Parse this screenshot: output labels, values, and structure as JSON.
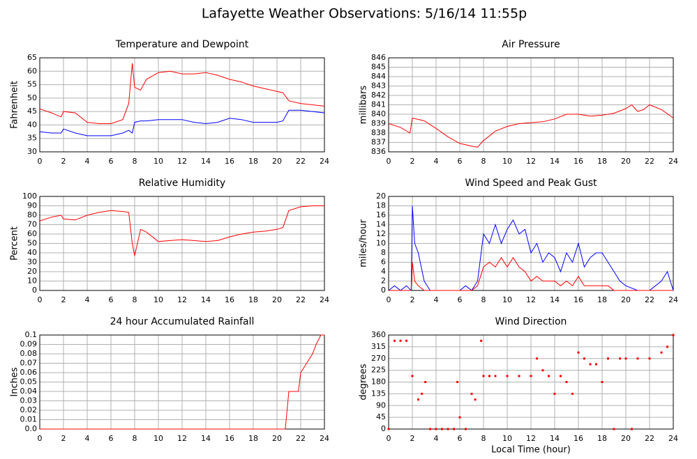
{
  "title": "Lafayette Weather Observations: 5/16/14 11:55p",
  "chart_data": [
    {
      "type": "line",
      "title": "Temperature and Dewpoint",
      "ylabel": "Fahrenheit",
      "grid": true,
      "xlim": [
        0,
        24
      ],
      "xticks": [
        0,
        2,
        4,
        6,
        8,
        10,
        12,
        14,
        16,
        18,
        20,
        22,
        24
      ],
      "ylim": [
        30,
        65
      ],
      "yticks": [
        30,
        35,
        40,
        45,
        50,
        55,
        60,
        65
      ],
      "x": [
        0,
        1,
        1.8,
        2,
        3,
        4,
        5,
        6,
        7,
        7.5,
        7.8,
        8,
        8.5,
        9,
        10,
        11,
        12,
        13,
        14,
        15,
        16,
        17,
        18,
        19,
        20,
        20.5,
        21,
        22,
        23,
        24
      ],
      "series": [
        {
          "color": "#ff0000",
          "values": [
            46,
            44.5,
            43,
            45,
            44.5,
            41,
            40.5,
            40.5,
            42,
            48,
            63,
            54,
            53,
            57,
            59.5,
            60,
            59,
            59,
            59.5,
            58.5,
            57,
            56,
            54.5,
            53.5,
            52.5,
            52,
            49,
            48,
            47.5,
            47
          ]
        },
        {
          "color": "#0000ff",
          "values": [
            37.5,
            37,
            37,
            38.5,
            37,
            36,
            36,
            36,
            37,
            38,
            37,
            41,
            41.5,
            41.5,
            42,
            42,
            42,
            41,
            40.5,
            41,
            42.5,
            42,
            41,
            41,
            41,
            41.5,
            45.5,
            45.5,
            45,
            44.5
          ]
        }
      ]
    },
    {
      "type": "line",
      "title": "Air Pressure",
      "ylabel": "millibars",
      "grid": true,
      "xlim": [
        0,
        24
      ],
      "xticks": [
        0,
        2,
        4,
        6,
        8,
        10,
        12,
        14,
        16,
        18,
        20,
        22,
        24
      ],
      "ylim": [
        836,
        846
      ],
      "yticks": [
        836,
        837,
        838,
        839,
        840,
        841,
        842,
        843,
        844,
        845,
        846
      ],
      "x": [
        0,
        1,
        1.8,
        2,
        3,
        4,
        5,
        6,
        7,
        7.5,
        8,
        9,
        10,
        11,
        12,
        13,
        14,
        15,
        16,
        17,
        18,
        19,
        20,
        20.5,
        21,
        21.5,
        22,
        23,
        24
      ],
      "series": [
        {
          "color": "#ff0000",
          "values": [
            839,
            838.6,
            838,
            839.6,
            839.3,
            838.5,
            837.6,
            836.9,
            836.6,
            836.5,
            837.2,
            838.2,
            838.7,
            839,
            839.1,
            839.2,
            839.5,
            840,
            840,
            839.8,
            839.9,
            840.1,
            840.6,
            841,
            840.3,
            840.5,
            841,
            840.5,
            839.6
          ]
        }
      ]
    },
    {
      "type": "line",
      "title": "Relative Humidity",
      "ylabel": "Percent",
      "grid": true,
      "xlim": [
        0,
        24
      ],
      "xticks": [
        0,
        2,
        4,
        6,
        8,
        10,
        12,
        14,
        16,
        18,
        20,
        22,
        24
      ],
      "ylim": [
        0,
        100
      ],
      "yticks": [
        0,
        10,
        20,
        30,
        40,
        50,
        60,
        70,
        80,
        90,
        100
      ],
      "x": [
        0,
        1,
        1.8,
        2,
        3,
        4,
        5,
        6,
        7,
        7.5,
        7.8,
        8,
        8.5,
        9,
        10,
        11,
        12,
        13,
        14,
        15,
        16,
        17,
        18,
        19,
        20,
        20.5,
        21,
        22,
        23,
        24
      ],
      "series": [
        {
          "color": "#ff0000",
          "values": [
            74,
            78,
            80,
            76,
            75,
            80,
            83,
            85,
            84,
            83,
            50,
            37,
            65,
            62,
            52,
            53,
            54,
            53,
            52,
            53,
            57,
            60,
            62,
            63,
            65,
            67,
            85,
            89,
            90,
            90
          ]
        }
      ]
    },
    {
      "type": "line",
      "title": "Wind Speed and Peak Gust",
      "ylabel": "miles/hour",
      "grid": true,
      "xlim": [
        0,
        24
      ],
      "xticks": [
        0,
        2,
        4,
        6,
        8,
        10,
        12,
        14,
        16,
        18,
        20,
        22,
        24
      ],
      "ylim": [
        0,
        20
      ],
      "yticks": [
        0,
        2,
        4,
        6,
        8,
        10,
        12,
        14,
        16,
        18,
        20
      ],
      "x": [
        0,
        0.5,
        1,
        1.5,
        1.9,
        2,
        2.2,
        2.5,
        3,
        3.5,
        4,
        5,
        6,
        6.5,
        7,
        7.5,
        8,
        8.5,
        9,
        9.5,
        10,
        10.5,
        11,
        11.5,
        12,
        12.5,
        13,
        13.5,
        14,
        14.5,
        15,
        15.5,
        16,
        16.5,
        17,
        17.5,
        18,
        18.5,
        19,
        19.5,
        20,
        21,
        22,
        22.5,
        23,
        23.5,
        24
      ],
      "series": [
        {
          "color": "#0000ff",
          "values": [
            0,
            1,
            0,
            1,
            0,
            18,
            10,
            8,
            2,
            0,
            0,
            0,
            0,
            1,
            0,
            2,
            12,
            10,
            14,
            10,
            13,
            15,
            12,
            13,
            8,
            10,
            6,
            8,
            7,
            4,
            8,
            6,
            10,
            5,
            7,
            8,
            8,
            6,
            4,
            2,
            1,
            0,
            0,
            1,
            2,
            4,
            0
          ]
        },
        {
          "color": "#ff0000",
          "values": [
            0,
            0,
            0,
            0,
            0,
            6,
            2,
            1,
            0,
            0,
            0,
            0,
            0,
            0,
            0,
            1,
            5,
            6,
            5,
            7,
            5,
            7,
            5,
            4,
            2,
            3,
            2,
            2,
            2,
            1,
            2,
            1,
            3,
            1,
            1,
            1,
            1,
            1,
            0,
            0,
            0,
            0,
            0,
            0,
            0,
            0,
            0
          ]
        }
      ]
    },
    {
      "type": "line",
      "title": "24 hour Accumulated Rainfall",
      "ylabel": "Inches",
      "grid": true,
      "xlim": [
        0,
        24
      ],
      "xticks": [
        0,
        2,
        4,
        6,
        8,
        10,
        12,
        14,
        16,
        18,
        20,
        22,
        24
      ],
      "ylim": [
        0,
        0.1
      ],
      "yticks": [
        {
          "value": 0,
          "label": "0.0"
        },
        0.01,
        0.02,
        0.03,
        0.04,
        0.05,
        0.06,
        0.07,
        0.08,
        0.09,
        0.1
      ],
      "x": [
        0,
        20.7,
        21,
        21.8,
        22,
        22.5,
        23,
        23.3,
        23.7,
        24
      ],
      "series": [
        {
          "color": "#ff0000",
          "values": [
            0,
            0,
            0.04,
            0.04,
            0.06,
            0.07,
            0.08,
            0.09,
            0.1,
            0.1
          ]
        }
      ]
    },
    {
      "type": "scatter",
      "title": "Wind Direction",
      "ylabel": "degrees",
      "xlabel": "Local Time (hour)",
      "grid": true,
      "xlim": [
        0,
        24
      ],
      "xticks": [
        0,
        2,
        4,
        6,
        8,
        10,
        12,
        14,
        16,
        18,
        20,
        22,
        24
      ],
      "ylim": [
        0,
        360
      ],
      "yticks": [
        0,
        45,
        90,
        135,
        180,
        225,
        270,
        315,
        360
      ],
      "x": [
        0,
        0.5,
        1,
        1.5,
        2,
        2.5,
        2.8,
        3.1,
        3.5,
        4,
        4.5,
        5,
        5.5,
        5.8,
        6,
        6.5,
        7,
        7.3,
        7.8,
        8,
        8.5,
        9,
        10,
        11,
        12,
        12.5,
        13,
        13.5,
        14,
        14.5,
        15,
        15.5,
        16,
        16.5,
        17,
        17.5,
        18,
        18.5,
        19,
        19.5,
        20,
        20.5,
        21,
        22,
        23,
        23.5,
        24
      ],
      "series": [
        {
          "color": "#ff0000",
          "values": [
            0,
            338,
            338,
            338,
            203,
            113,
            135,
            180,
            0,
            0,
            0,
            0,
            0,
            180,
            45,
            0,
            135,
            113,
            338,
            203,
            203,
            203,
            203,
            203,
            203,
            270,
            225,
            203,
            135,
            203,
            180,
            135,
            293,
            270,
            248,
            248,
            180,
            270,
            0,
            270,
            270,
            0,
            270,
            270,
            293,
            315,
            360
          ]
        }
      ]
    }
  ]
}
